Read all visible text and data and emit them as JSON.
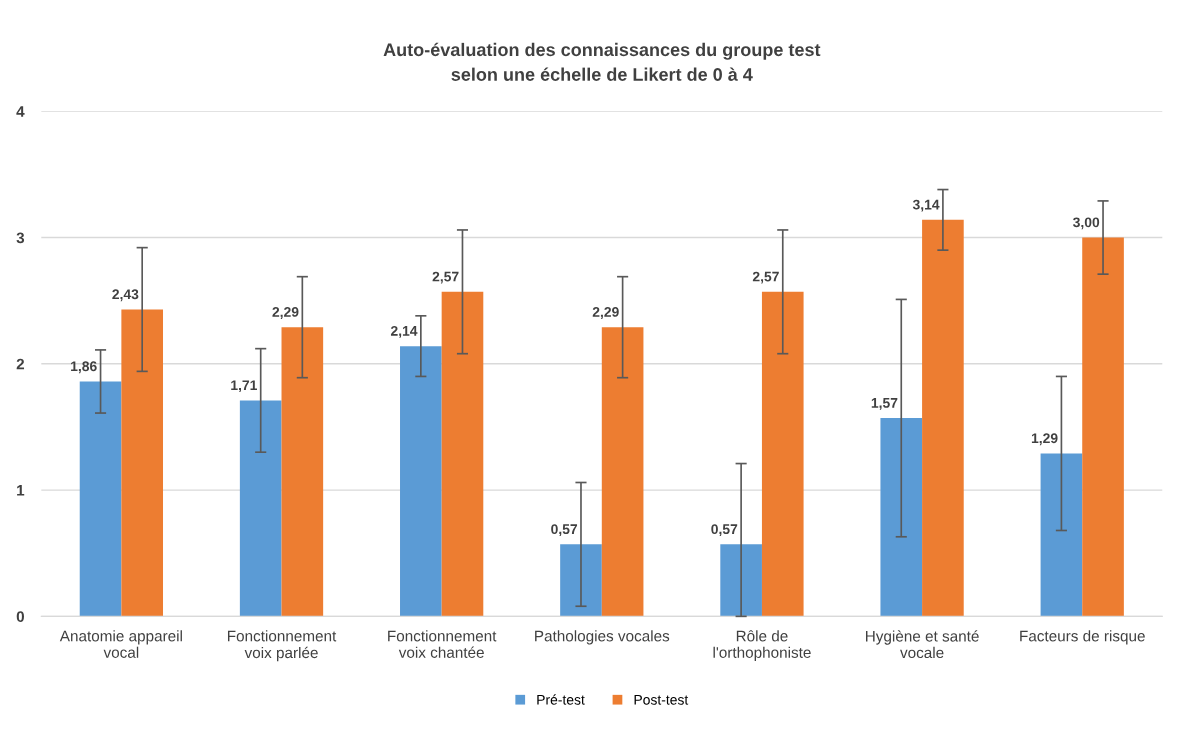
{
  "chart_data": {
    "type": "bar",
    "title": "Auto-évaluation des connaissances du groupe test\nselon une échelle de Likert de 0 à 4",
    "categories": [
      "Anatomie appareil\nvocal",
      "Fonctionnement\nvoix parlée",
      "Fonctionnement\nvoix chantée",
      "Pathologies vocales",
      "Rôle de\nl'orthophoniste",
      "Hygiène et santé\nvocale",
      "Facteurs de risque"
    ],
    "series": [
      {
        "name": "Pré-test",
        "color": "#5b9bd5",
        "values": [
          1.86,
          1.71,
          2.14,
          0.57,
          0.57,
          1.57,
          1.29
        ],
        "value_labels": [
          "1,86",
          "1,71",
          "2,14",
          "0,57",
          "0,57",
          "1,57",
          "1,29"
        ],
        "errors": [
          0.25,
          0.41,
          0.24,
          0.49,
          [
            0,
            1.21
          ],
          0.94,
          0.61
        ]
      },
      {
        "name": "Post-test",
        "color": "#ed7d31",
        "values": [
          2.43,
          2.29,
          2.57,
          2.29,
          2.57,
          3.14,
          3.0
        ],
        "value_labels": [
          "2,43",
          "2,29",
          "2,57",
          "2,29",
          "2,57",
          "3,14",
          "3,00"
        ],
        "errors": [
          0.49,
          0.4,
          0.49,
          0.4,
          0.49,
          0.24,
          0.29
        ]
      }
    ],
    "ylim": [
      0,
      4
    ],
    "yticks": [
      0,
      1,
      2,
      3,
      4
    ],
    "grid": "y",
    "legend": "bottom"
  }
}
